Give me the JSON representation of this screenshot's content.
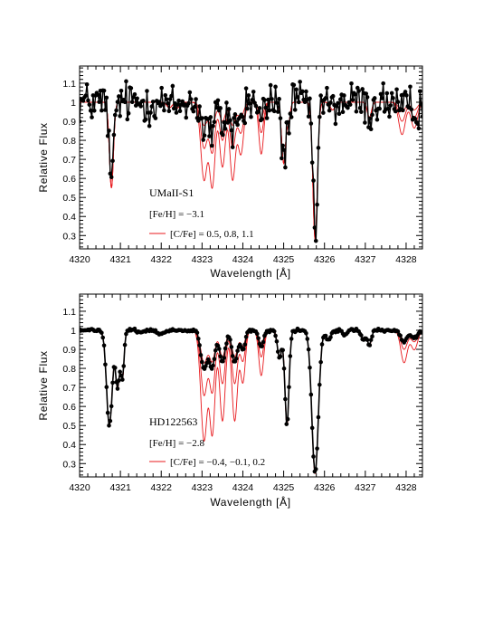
{
  "chart_data": [
    {
      "type": "line",
      "name": "UMaII-S1",
      "xlabel": "Wavelength [Å]",
      "ylabel": "Relative Flux",
      "xlim": [
        4320,
        4328.4
      ],
      "ylim": [
        0.23,
        1.19
      ],
      "xticks": [
        4320,
        4321,
        4322,
        4323,
        4324,
        4325,
        4326,
        4327,
        4328
      ],
      "yticks": [
        0.3,
        0.4,
        0.5,
        0.6,
        0.7,
        0.8,
        0.9,
        1,
        1.1
      ],
      "ytick_labels": [
        "0.3",
        "0.4",
        "0.5",
        "0.6",
        "0.7",
        "0.8",
        "0.9",
        "1",
        "1.1"
      ],
      "annotations": {
        "star": "UMaII-S1",
        "feh": "[Fe/H]  =  −3.1",
        "cfe": "[C/Fe]  =  0.5,  0.8,  1.1"
      },
      "model_colors": "#e8181c",
      "observed_color": "#000000",
      "models_CFe": [
        0.5,
        0.8,
        1.1
      ],
      "lines_features": [
        {
          "center": 4320.78,
          "depth": 0.45,
          "width": 0.05
        },
        {
          "center": 4322.2,
          "depth": 0.03,
          "width": 0.06
        },
        {
          "center": 4322.4,
          "depth": 0.03,
          "width": 0.05
        },
        {
          "center": 4323.05,
          "depth": 0.12,
          "width": 0.08,
          "ch": true
        },
        {
          "center": 4323.25,
          "depth": 0.13,
          "width": 0.07,
          "ch": true
        },
        {
          "center": 4323.5,
          "depth": 0.1,
          "width": 0.07,
          "ch": true
        },
        {
          "center": 4323.75,
          "depth": 0.12,
          "width": 0.07,
          "ch": true
        },
        {
          "center": 4323.95,
          "depth": 0.08,
          "width": 0.07,
          "ch": true
        },
        {
          "center": 4324.45,
          "depth": 0.08,
          "width": 0.06,
          "ch": true
        },
        {
          "center": 4325.0,
          "depth": 0.32,
          "width": 0.05
        },
        {
          "center": 4325.12,
          "depth": 0.1,
          "width": 0.04
        },
        {
          "center": 4325.77,
          "depth": 0.72,
          "width": 0.055
        },
        {
          "center": 4326.2,
          "depth": 0.04,
          "width": 0.06
        },
        {
          "center": 4327.1,
          "depth": 0.08,
          "width": 0.05
        },
        {
          "center": 4327.9,
          "depth": 0.05,
          "width": 0.08,
          "ch": true
        },
        {
          "center": 4328.2,
          "depth": 0.04,
          "width": 0.08,
          "ch": true
        }
      ],
      "noise": 0.055
    },
    {
      "type": "line",
      "name": "HD122563",
      "xlabel": "Wavelength [Å]",
      "ylabel": "Relative Flux",
      "xlim": [
        4320,
        4328.4
      ],
      "ylim": [
        0.23,
        1.19
      ],
      "xticks": [
        4320,
        4321,
        4322,
        4323,
        4324,
        4325,
        4326,
        4327,
        4328
      ],
      "yticks": [
        0.3,
        0.4,
        0.5,
        0.6,
        0.7,
        0.8,
        0.9,
        1,
        1.1
      ],
      "ytick_labels": [
        "0.3",
        "0.4",
        "0.5",
        "0.6",
        "0.7",
        "0.8",
        "0.9",
        "1",
        "1.1"
      ],
      "annotations": {
        "star": "HD122563",
        "feh": "[Fe/H]  =  −2.8",
        "cfe": "[C/Fe]  =  −0.4,  −0.1,  0.2"
      },
      "model_colors": "#e8181c",
      "observed_color": "#000000",
      "models_CFe": [
        -0.4,
        -0.1,
        0.2
      ],
      "lines_features": [
        {
          "center": 4320.73,
          "depth": 0.5,
          "width": 0.07
        },
        {
          "center": 4320.93,
          "depth": 0.3,
          "width": 0.05
        },
        {
          "center": 4321.05,
          "depth": 0.25,
          "width": 0.04
        },
        {
          "center": 4321.5,
          "depth": 0.01,
          "width": 0.05
        },
        {
          "center": 4322.0,
          "depth": 0.02,
          "width": 0.08
        },
        {
          "center": 4323.05,
          "depth": 0.17,
          "width": 0.08,
          "ch": true
        },
        {
          "center": 4323.25,
          "depth": 0.16,
          "width": 0.07,
          "ch": true
        },
        {
          "center": 4323.5,
          "depth": 0.14,
          "width": 0.07,
          "ch": true
        },
        {
          "center": 4323.8,
          "depth": 0.14,
          "width": 0.07,
          "ch": true
        },
        {
          "center": 4324.0,
          "depth": 0.08,
          "width": 0.06,
          "ch": true
        },
        {
          "center": 4324.45,
          "depth": 0.07,
          "width": 0.06,
          "ch": true
        },
        {
          "center": 4324.9,
          "depth": 0.15,
          "width": 0.05
        },
        {
          "center": 4325.08,
          "depth": 0.5,
          "width": 0.05
        },
        {
          "center": 4325.77,
          "depth": 0.75,
          "width": 0.08
        },
        {
          "center": 4326.1,
          "depth": 0.05,
          "width": 0.06
        },
        {
          "center": 4326.5,
          "depth": 0.03,
          "width": 0.05
        },
        {
          "center": 4326.95,
          "depth": 0.05,
          "width": 0.05
        },
        {
          "center": 4327.1,
          "depth": 0.08,
          "width": 0.05
        },
        {
          "center": 4327.95,
          "depth": 0.05,
          "width": 0.08,
          "ch": true
        },
        {
          "center": 4328.2,
          "depth": 0.03,
          "width": 0.08,
          "ch": true
        }
      ],
      "noise": 0.004
    }
  ]
}
